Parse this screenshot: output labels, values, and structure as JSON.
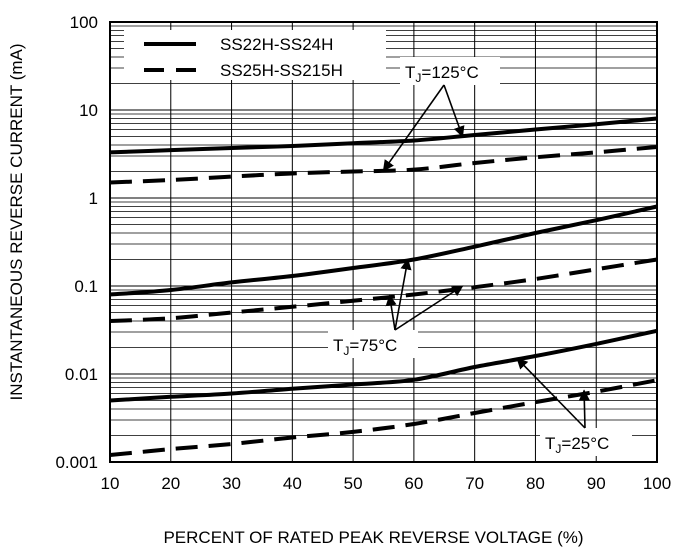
{
  "chart_data": {
    "type": "line",
    "xlabel": "PERCENT OF RATED PEAK REVERSE VOLTAGE (%)",
    "ylabel": "INSTANTANEOUS REVERSE CURRENT (mA)",
    "xlim": [
      10,
      100
    ],
    "ylim": [
      0.001,
      100
    ],
    "yscale": "log",
    "grid": true,
    "x_ticks": [
      "10",
      "20",
      "30",
      "40",
      "50",
      "60",
      "70",
      "80",
      "90",
      "100"
    ],
    "y_ticks": [
      "0.001",
      "0.01",
      "0.1",
      "1",
      "10",
      "100"
    ],
    "legend": {
      "placement": "top-left",
      "entries": [
        {
          "label": "SS22H-SS24H",
          "style": "solid"
        },
        {
          "label": "SS25H-SS215H",
          "style": "dashed"
        }
      ]
    },
    "series": [
      {
        "group": "SS22H-SS24H",
        "temperature": "125",
        "style": "solid",
        "x": [
          10,
          20,
          30,
          40,
          50,
          60,
          70,
          80,
          90,
          100
        ],
        "y": [
          3.3,
          3.5,
          3.7,
          3.9,
          4.2,
          4.5,
          5.2,
          6.0,
          6.9,
          8.0
        ]
      },
      {
        "group": "SS25H-SS215H",
        "temperature": "125",
        "style": "dashed",
        "x": [
          10,
          20,
          30,
          40,
          50,
          60,
          70,
          80,
          90,
          100
        ],
        "y": [
          1.5,
          1.6,
          1.75,
          1.9,
          2.0,
          2.1,
          2.5,
          2.9,
          3.3,
          3.8
        ]
      },
      {
        "group": "SS22H-SS24H",
        "temperature": "75",
        "style": "solid",
        "x": [
          10,
          20,
          30,
          40,
          50,
          60,
          70,
          80,
          90,
          100
        ],
        "y": [
          0.08,
          0.09,
          0.11,
          0.13,
          0.16,
          0.2,
          0.28,
          0.4,
          0.56,
          0.8
        ]
      },
      {
        "group": "SS25H-SS215H",
        "temperature": "75",
        "style": "dashed",
        "x": [
          10,
          20,
          30,
          40,
          50,
          60,
          70,
          80,
          90,
          100
        ],
        "y": [
          0.04,
          0.043,
          0.05,
          0.058,
          0.068,
          0.08,
          0.097,
          0.12,
          0.155,
          0.2
        ]
      },
      {
        "group": "SS22H-SS24H",
        "temperature": "25",
        "style": "solid",
        "x": [
          10,
          20,
          30,
          40,
          50,
          60,
          70,
          80,
          90,
          100
        ],
        "y": [
          0.005,
          0.0055,
          0.006,
          0.0068,
          0.0076,
          0.0086,
          0.012,
          0.016,
          0.022,
          0.031
        ]
      },
      {
        "group": "SS25H-SS215H",
        "temperature": "25",
        "style": "dashed",
        "x": [
          10,
          20,
          30,
          40,
          50,
          60,
          70,
          80,
          90,
          100
        ],
        "y": [
          0.0012,
          0.0014,
          0.0016,
          0.0019,
          0.0022,
          0.0027,
          0.0036,
          0.0048,
          0.0063,
          0.0085
        ]
      }
    ],
    "annotations": [
      {
        "text": "=125°C",
        "subscript_prefix": "J",
        "prefix": "T",
        "points_to": [
          [
            68,
            5.0
          ],
          [
            55,
            2.05
          ]
        ]
      },
      {
        "text": "=75°C",
        "subscript_prefix": "J",
        "prefix": "T",
        "points_to": [
          [
            59,
            0.2
          ],
          [
            56,
            0.078
          ],
          [
            68,
            0.1
          ]
        ]
      },
      {
        "text": "=25°C",
        "subscript_prefix": "J",
        "prefix": "T",
        "points_to": [
          [
            77,
            0.015
          ],
          [
            88,
            0.0065
          ]
        ]
      }
    ]
  }
}
